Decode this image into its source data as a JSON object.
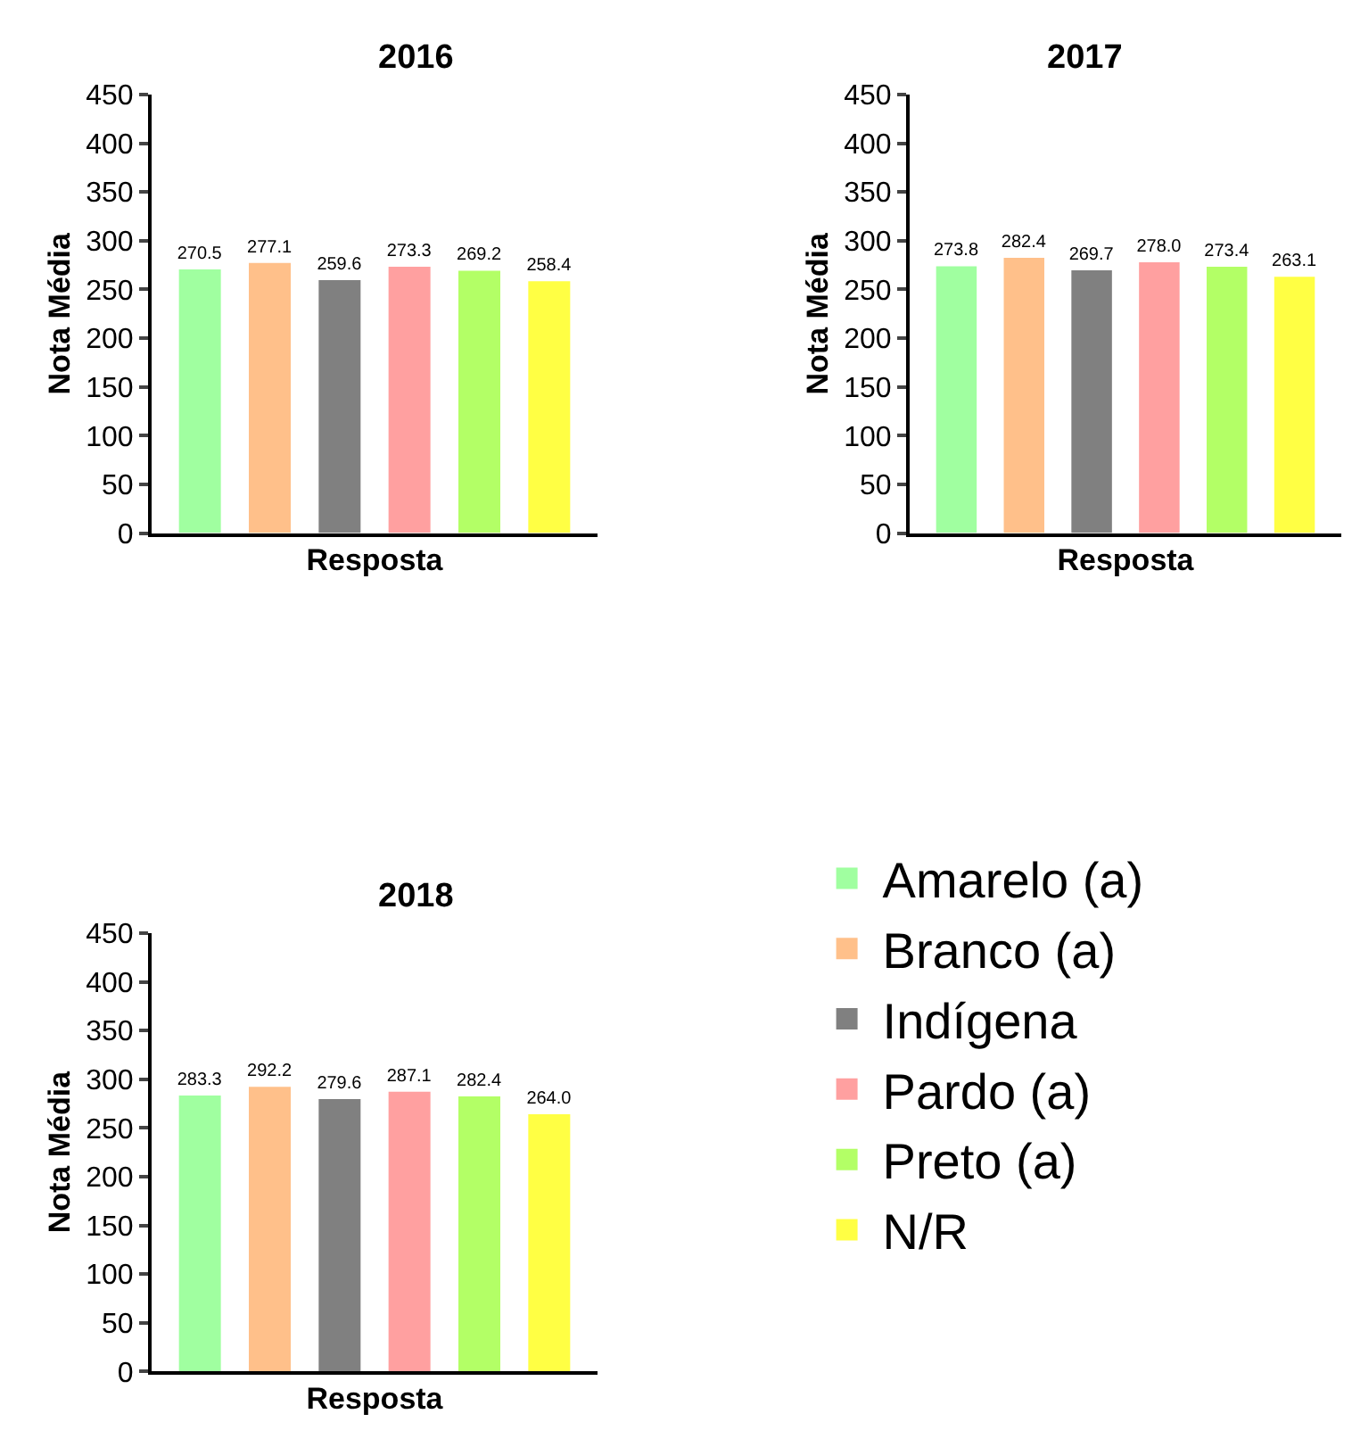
{
  "chart_data": [
    {
      "type": "bar",
      "title": "2016",
      "xlabel": "Resposta",
      "ylabel": "Nota Média",
      "categories": [
        null
      ],
      "ylim": [
        0,
        450
      ],
      "yticks": [
        0,
        50,
        100,
        150,
        200,
        250,
        300,
        350,
        400,
        450
      ],
      "tick_labels": "y",
      "legend": false,
      "data_labels": true,
      "series": [
        {
          "color": "#a0ffa0",
          "values": [
            270.5
          ]
        },
        {
          "color": "#ffc08a",
          "values": [
            277.1
          ]
        },
        {
          "color": "#808080",
          "values": [
            259.6
          ]
        },
        {
          "color": "#ffa0a0",
          "values": [
            273.3
          ]
        },
        {
          "color": "#b3ff66",
          "values": [
            269.2
          ]
        },
        {
          "color": "#ffff44",
          "values": [
            258.4
          ]
        }
      ]
    },
    {
      "type": "bar",
      "title": "2017",
      "xlabel": "Resposta",
      "ylabel": "Nota Média",
      "categories": [
        null
      ],
      "ylim": [
        0,
        450
      ],
      "yticks": [
        0,
        50,
        100,
        150,
        200,
        250,
        300,
        350,
        400,
        450
      ],
      "tick_labels": "y",
      "legend": false,
      "data_labels": true,
      "series": [
        {
          "color": "#a0ffa0",
          "values": [
            273.8
          ]
        },
        {
          "color": "#ffc08a",
          "values": [
            282.4
          ]
        },
        {
          "color": "#808080",
          "values": [
            269.7
          ]
        },
        {
          "color": "#ffa0a0",
          "values": [
            278.0
          ],
          "value_labels": [
            "278.0"
          ]
        },
        {
          "color": "#b3ff66",
          "values": [
            273.4
          ]
        },
        {
          "color": "#ffff44",
          "values": [
            263.1
          ]
        }
      ]
    },
    {
      "type": "bar",
      "title": "2018",
      "xlabel": "Resposta",
      "ylabel": "Nota Média",
      "categories": [
        null
      ],
      "ylim": [
        0,
        450
      ],
      "yticks": [
        0,
        50,
        100,
        150,
        200,
        250,
        300,
        350,
        400,
        450
      ],
      "tick_labels": "y",
      "legend": "right",
      "data_labels": true,
      "series": [
        {
          "name": "Amarelo (a)",
          "color": "#a0ffa0",
          "values": [
            283.3
          ]
        },
        {
          "name": "Branco (a)",
          "color": "#ffc08a",
          "values": [
            292.2
          ]
        },
        {
          "name": "Indígena",
          "color": "#808080",
          "values": [
            279.6
          ]
        },
        {
          "name": "Pardo (a)",
          "color": "#ffa0a0",
          "values": [
            287.1
          ]
        },
        {
          "name": "Preto (a)",
          "color": "#b3ff66",
          "values": [
            282.4
          ]
        },
        {
          "name": "N/R",
          "color": "#ffff44",
          "values": [
            264.0
          ],
          "value_labels": [
            "264.0"
          ]
        }
      ]
    }
  ]
}
